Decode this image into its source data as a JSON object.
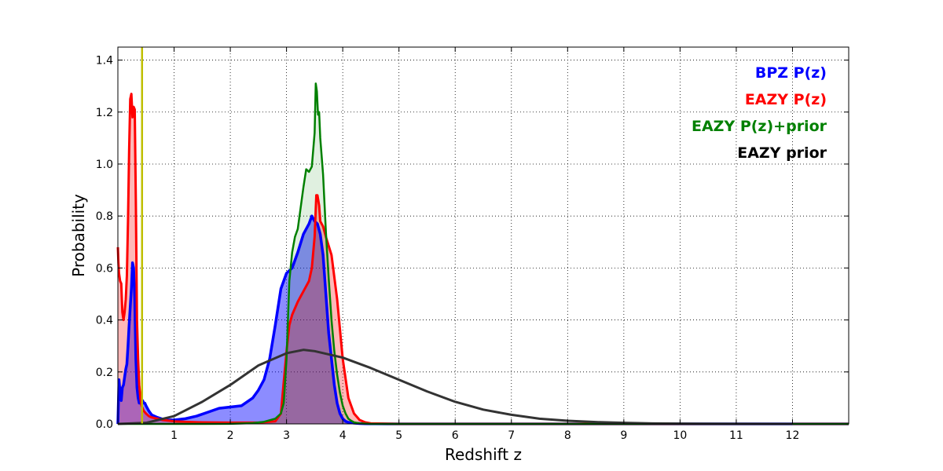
{
  "chart_data": {
    "type": "area",
    "xlabel": "Redshift z",
    "ylabel": "Probability",
    "xlim": [
      0,
      13
    ],
    "ylim": [
      0,
      1.45
    ],
    "x_ticks": [
      "1",
      "2",
      "3",
      "4",
      "5",
      "6",
      "7",
      "8",
      "9",
      "10",
      "11",
      "12"
    ],
    "y_ticks": [
      "0.0",
      "0.2",
      "0.4",
      "0.6",
      "0.8",
      "1.0",
      "1.2",
      "1.4"
    ],
    "grid": true,
    "legend_position": "top-right",
    "vertical_line": {
      "x": 0.43,
      "color": "#bfbf00"
    },
    "series": [
      {
        "name": "BPZ P(z)",
        "color": "#0000ff",
        "fill": "#0000ff",
        "fill_opacity": 0.45,
        "x": [
          0.0,
          0.02,
          0.04,
          0.06,
          0.08,
          0.1,
          0.12,
          0.14,
          0.16,
          0.18,
          0.2,
          0.22,
          0.24,
          0.26,
          0.28,
          0.3,
          0.32,
          0.34,
          0.36,
          0.38,
          0.4,
          0.42,
          0.44,
          0.46,
          0.48,
          0.5,
          0.55,
          0.6,
          0.65,
          0.7,
          0.8,
          0.9,
          1.0,
          1.2,
          1.4,
          1.6,
          1.8,
          2.0,
          2.2,
          2.4,
          2.5,
          2.6,
          2.7,
          2.8,
          2.9,
          3.0,
          3.1,
          3.2,
          3.3,
          3.4,
          3.45,
          3.5,
          3.55,
          3.6,
          3.65,
          3.7,
          3.75,
          3.8,
          3.85,
          3.9,
          3.95,
          4.0,
          4.05,
          4.1,
          4.2,
          4.3,
          4.4,
          4.5,
          4.6,
          4.8,
          5.0,
          6.0,
          8.0,
          10.0,
          12.0,
          13.0
        ],
        "y": [
          0.0,
          0.17,
          0.12,
          0.09,
          0.14,
          0.15,
          0.18,
          0.21,
          0.23,
          0.3,
          0.38,
          0.45,
          0.52,
          0.62,
          0.6,
          0.48,
          0.25,
          0.14,
          0.1,
          0.08,
          0.08,
          0.09,
          0.09,
          0.08,
          0.08,
          0.07,
          0.05,
          0.035,
          0.03,
          0.025,
          0.018,
          0.015,
          0.015,
          0.02,
          0.03,
          0.045,
          0.06,
          0.065,
          0.07,
          0.1,
          0.13,
          0.17,
          0.25,
          0.38,
          0.52,
          0.58,
          0.6,
          0.66,
          0.73,
          0.77,
          0.8,
          0.78,
          0.77,
          0.73,
          0.65,
          0.5,
          0.35,
          0.25,
          0.15,
          0.08,
          0.04,
          0.02,
          0.01,
          0.006,
          0.003,
          0.0015,
          0.0008,
          0.0004,
          0.0002,
          0.0001,
          0.0,
          0.0,
          0.0,
          0.0,
          0.0,
          0.0
        ]
      },
      {
        "name": "EAZY P(z)",
        "color": "#ff0000",
        "fill": "#ff0000",
        "fill_opacity": 0.28,
        "x": [
          0.0,
          0.01,
          0.02,
          0.04,
          0.06,
          0.08,
          0.1,
          0.12,
          0.14,
          0.16,
          0.18,
          0.2,
          0.22,
          0.24,
          0.26,
          0.28,
          0.3,
          0.32,
          0.34,
          0.36,
          0.38,
          0.4,
          0.42,
          0.44,
          0.46,
          0.5,
          0.55,
          0.6,
          0.7,
          0.8,
          1.0,
          1.2,
          1.5,
          2.0,
          2.5,
          2.8,
          2.9,
          3.0,
          3.05,
          3.1,
          3.2,
          3.3,
          3.4,
          3.45,
          3.5,
          3.53,
          3.55,
          3.58,
          3.6,
          3.65,
          3.7,
          3.8,
          3.9,
          4.0,
          4.1,
          4.2,
          4.3,
          4.4,
          4.5,
          5.0,
          6.0,
          13.0
        ],
        "y": [
          0.68,
          0.62,
          0.58,
          0.55,
          0.54,
          0.43,
          0.4,
          0.43,
          0.48,
          0.57,
          0.78,
          1.05,
          1.25,
          1.27,
          1.18,
          1.22,
          1.21,
          0.85,
          0.4,
          0.25,
          0.15,
          0.1,
          0.07,
          0.06,
          0.05,
          0.04,
          0.03,
          0.025,
          0.02,
          0.015,
          0.01,
          0.008,
          0.006,
          0.005,
          0.005,
          0.01,
          0.04,
          0.28,
          0.38,
          0.42,
          0.47,
          0.51,
          0.55,
          0.6,
          0.72,
          0.88,
          0.88,
          0.84,
          0.78,
          0.76,
          0.72,
          0.65,
          0.48,
          0.25,
          0.1,
          0.04,
          0.015,
          0.006,
          0.002,
          0.0,
          0.0,
          0.0
        ]
      },
      {
        "name": "EAZY P(z)+prior",
        "color": "#008000",
        "fill": "#008000",
        "fill_opacity": 0.12,
        "x": [
          0.0,
          0.5,
          1.0,
          1.5,
          2.0,
          2.4,
          2.6,
          2.8,
          2.9,
          2.95,
          3.0,
          3.05,
          3.1,
          3.15,
          3.2,
          3.25,
          3.3,
          3.35,
          3.4,
          3.45,
          3.5,
          3.52,
          3.54,
          3.56,
          3.58,
          3.6,
          3.65,
          3.7,
          3.75,
          3.8,
          3.85,
          3.9,
          3.95,
          4.0,
          4.05,
          4.1,
          4.15,
          4.2,
          4.3,
          4.4,
          4.5,
          4.7,
          5.0,
          13.0
        ],
        "y": [
          0.0,
          0.0,
          0.0,
          0.0,
          0.0005,
          0.003,
          0.008,
          0.02,
          0.04,
          0.08,
          0.25,
          0.55,
          0.66,
          0.72,
          0.75,
          0.83,
          0.91,
          0.98,
          0.97,
          0.99,
          1.12,
          1.31,
          1.28,
          1.19,
          1.2,
          1.1,
          0.96,
          0.74,
          0.56,
          0.4,
          0.28,
          0.19,
          0.12,
          0.07,
          0.04,
          0.02,
          0.012,
          0.006,
          0.002,
          0.001,
          0.0,
          0.0,
          0.0,
          0.0
        ]
      },
      {
        "name": "EAZY prior",
        "color": "#333333",
        "fill": "none",
        "fill_opacity": 0,
        "x": [
          0.0,
          0.5,
          1.0,
          1.5,
          2.0,
          2.5,
          3.0,
          3.3,
          3.5,
          4.0,
          4.5,
          5.0,
          5.5,
          6.0,
          6.5,
          7.0,
          7.5,
          8.0,
          8.5,
          9.0,
          9.5,
          10.0,
          11.0,
          12.0
        ],
        "y": [
          0.0,
          0.004,
          0.03,
          0.085,
          0.15,
          0.225,
          0.272,
          0.285,
          0.28,
          0.255,
          0.215,
          0.17,
          0.125,
          0.085,
          0.055,
          0.035,
          0.02,
          0.012,
          0.007,
          0.004,
          0.002,
          0.001,
          0.0003,
          0.0
        ]
      }
    ]
  }
}
